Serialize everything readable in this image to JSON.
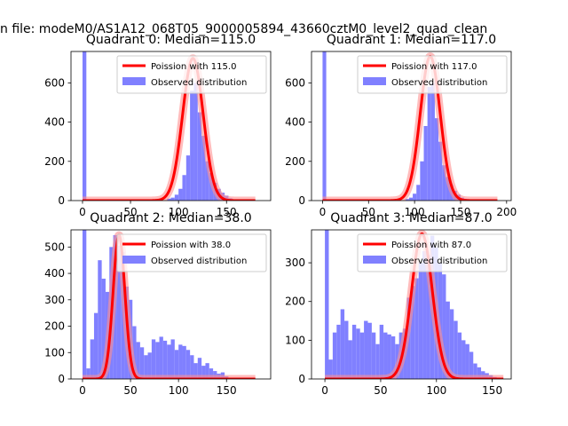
{
  "figure": {
    "suptitle": "n file: modeM0/AS1A12_068T05_9000005894_43660cztM0_level2_quad_clean"
  },
  "colors": {
    "hist_fill": "#8080ff",
    "poisson_line": "#ff0000",
    "poisson_glow": "#ff9090",
    "axis": "#000000"
  },
  "chart_data": [
    {
      "type": "bar",
      "title": "Quadrant 0: Median=115.0",
      "xlim": [
        -12,
        196
      ],
      "ylim": [
        0,
        760
      ],
      "xticks": [
        "0",
        "50",
        "100",
        "150"
      ],
      "xtick_values": [
        0,
        50,
        100,
        150
      ],
      "yticks": [
        "0",
        "200",
        "400",
        "600"
      ],
      "ytick_values": [
        0,
        200,
        400,
        600
      ],
      "bin_width": 4,
      "bins": [
        [
          0,
          760
        ],
        [
          88,
          10
        ],
        [
          92,
          15
        ],
        [
          96,
          30
        ],
        [
          100,
          60
        ],
        [
          104,
          130
        ],
        [
          108,
          230
        ],
        [
          112,
          560
        ],
        [
          116,
          600
        ],
        [
          120,
          450
        ],
        [
          124,
          330
        ],
        [
          128,
          200
        ],
        [
          132,
          140
        ],
        [
          136,
          90
        ],
        [
          140,
          60
        ],
        [
          144,
          40
        ],
        [
          148,
          25
        ],
        [
          152,
          12
        ],
        [
          156,
          5
        ]
      ],
      "poisson_mean": 115,
      "poisson_peak": 725,
      "poisson_xrange": [
        0,
        180
      ],
      "legend": [
        "Poission with 115.0",
        "Observed distribution"
      ]
    },
    {
      "type": "bar",
      "title": "Quadrant 1: Median=117.0",
      "xlim": [
        -12,
        205
      ],
      "ylim": [
        0,
        760
      ],
      "xticks": [
        "0",
        "50",
        "100",
        "150",
        "200"
      ],
      "xtick_values": [
        0,
        50,
        100,
        150,
        200
      ],
      "yticks": [
        "0",
        "200",
        "400",
        "600"
      ],
      "ytick_values": [
        0,
        200,
        400,
        600
      ],
      "bin_width": 4,
      "bins": [
        [
          0,
          760
        ],
        [
          90,
          8
        ],
        [
          94,
          15
        ],
        [
          98,
          35
        ],
        [
          102,
          80
        ],
        [
          106,
          200
        ],
        [
          110,
          380
        ],
        [
          114,
          580
        ],
        [
          118,
          600
        ],
        [
          122,
          420
        ],
        [
          126,
          300
        ],
        [
          130,
          180
        ],
        [
          134,
          120
        ],
        [
          138,
          80
        ],
        [
          142,
          50
        ],
        [
          146,
          30
        ],
        [
          150,
          15
        ],
        [
          154,
          8
        ]
      ],
      "poisson_mean": 117,
      "poisson_peak": 735,
      "poisson_xrange": [
        0,
        190
      ],
      "legend": [
        "Poission with 117.0",
        "Observed distribution"
      ]
    },
    {
      "type": "bar",
      "title": "Quadrant 2: Median=38.0",
      "xlim": [
        -12,
        196
      ],
      "ylim": [
        0,
        565
      ],
      "xticks": [
        "0",
        "50",
        "100",
        "150"
      ],
      "xtick_values": [
        0,
        50,
        100,
        150
      ],
      "yticks": [
        "0",
        "100",
        "200",
        "300",
        "400",
        "500"
      ],
      "ytick_values": [
        0,
        100,
        200,
        300,
        400,
        500
      ],
      "bin_width": 4,
      "bins": [
        [
          0,
          565
        ],
        [
          4,
          40
        ],
        [
          8,
          150
        ],
        [
          12,
          250
        ],
        [
          16,
          450
        ],
        [
          20,
          380
        ],
        [
          24,
          330
        ],
        [
          28,
          500
        ],
        [
          32,
          545
        ],
        [
          36,
          505
        ],
        [
          40,
          480
        ],
        [
          44,
          350
        ],
        [
          48,
          300
        ],
        [
          52,
          200
        ],
        [
          56,
          140
        ],
        [
          60,
          120
        ],
        [
          64,
          90
        ],
        [
          68,
          100
        ],
        [
          72,
          150
        ],
        [
          76,
          140
        ],
        [
          80,
          160
        ],
        [
          84,
          145
        ],
        [
          88,
          130
        ],
        [
          92,
          150
        ],
        [
          96,
          110
        ],
        [
          100,
          130
        ],
        [
          104,
          125
        ],
        [
          108,
          110
        ],
        [
          112,
          90
        ],
        [
          116,
          60
        ],
        [
          120,
          80
        ],
        [
          124,
          50
        ],
        [
          128,
          60
        ],
        [
          132,
          40
        ],
        [
          136,
          30
        ],
        [
          140,
          20
        ],
        [
          144,
          25
        ],
        [
          148,
          10
        ]
      ],
      "poisson_mean": 38,
      "poisson_peak": 545,
      "poisson_xrange": [
        0,
        180
      ],
      "legend": [
        "Poission with 38.0",
        "Observed distribution"
      ]
    },
    {
      "type": "bar",
      "title": "Quadrant 3: Median=87.0",
      "xlim": [
        -12,
        167
      ],
      "ylim": [
        0,
        385
      ],
      "xticks": [
        "0",
        "50",
        "100",
        "150"
      ],
      "xtick_values": [
        0,
        50,
        100,
        150
      ],
      "yticks": [
        "0",
        "100",
        "200",
        "300"
      ],
      "ytick_values": [
        0,
        100,
        200,
        300
      ],
      "bin_width": 3.5,
      "bins": [
        [
          0,
          385
        ],
        [
          3.5,
          50
        ],
        [
          7,
          120
        ],
        [
          10.5,
          140
        ],
        [
          14,
          180
        ],
        [
          17.5,
          150
        ],
        [
          21,
          100
        ],
        [
          24.5,
          140
        ],
        [
          28,
          130
        ],
        [
          31.5,
          120
        ],
        [
          35,
          150
        ],
        [
          38.5,
          145
        ],
        [
          42,
          120
        ],
        [
          45.5,
          90
        ],
        [
          49,
          140
        ],
        [
          52.5,
          120
        ],
        [
          56,
          115
        ],
        [
          59.5,
          110
        ],
        [
          63,
          90
        ],
        [
          66.5,
          120
        ],
        [
          70,
          130
        ],
        [
          73.5,
          210
        ],
        [
          77,
          240
        ],
        [
          80.5,
          260
        ],
        [
          84,
          300
        ],
        [
          87.5,
          330
        ],
        [
          91,
          320
        ],
        [
          94.5,
          370
        ],
        [
          98,
          340
        ],
        [
          101.5,
          300
        ],
        [
          105,
          270
        ],
        [
          108.5,
          200
        ],
        [
          112,
          180
        ],
        [
          115.5,
          150
        ],
        [
          119,
          120
        ],
        [
          122.5,
          100
        ],
        [
          126,
          90
        ],
        [
          129.5,
          70
        ],
        [
          133,
          40
        ],
        [
          136.5,
          30
        ],
        [
          140,
          20
        ],
        [
          143.5,
          15
        ],
        [
          147,
          10
        ],
        [
          150.5,
          5
        ]
      ],
      "poisson_mean": 87,
      "poisson_peak": 375,
      "poisson_xrange": [
        0,
        160
      ],
      "legend": [
        "Poission with 87.0",
        "Observed distribution"
      ]
    }
  ]
}
